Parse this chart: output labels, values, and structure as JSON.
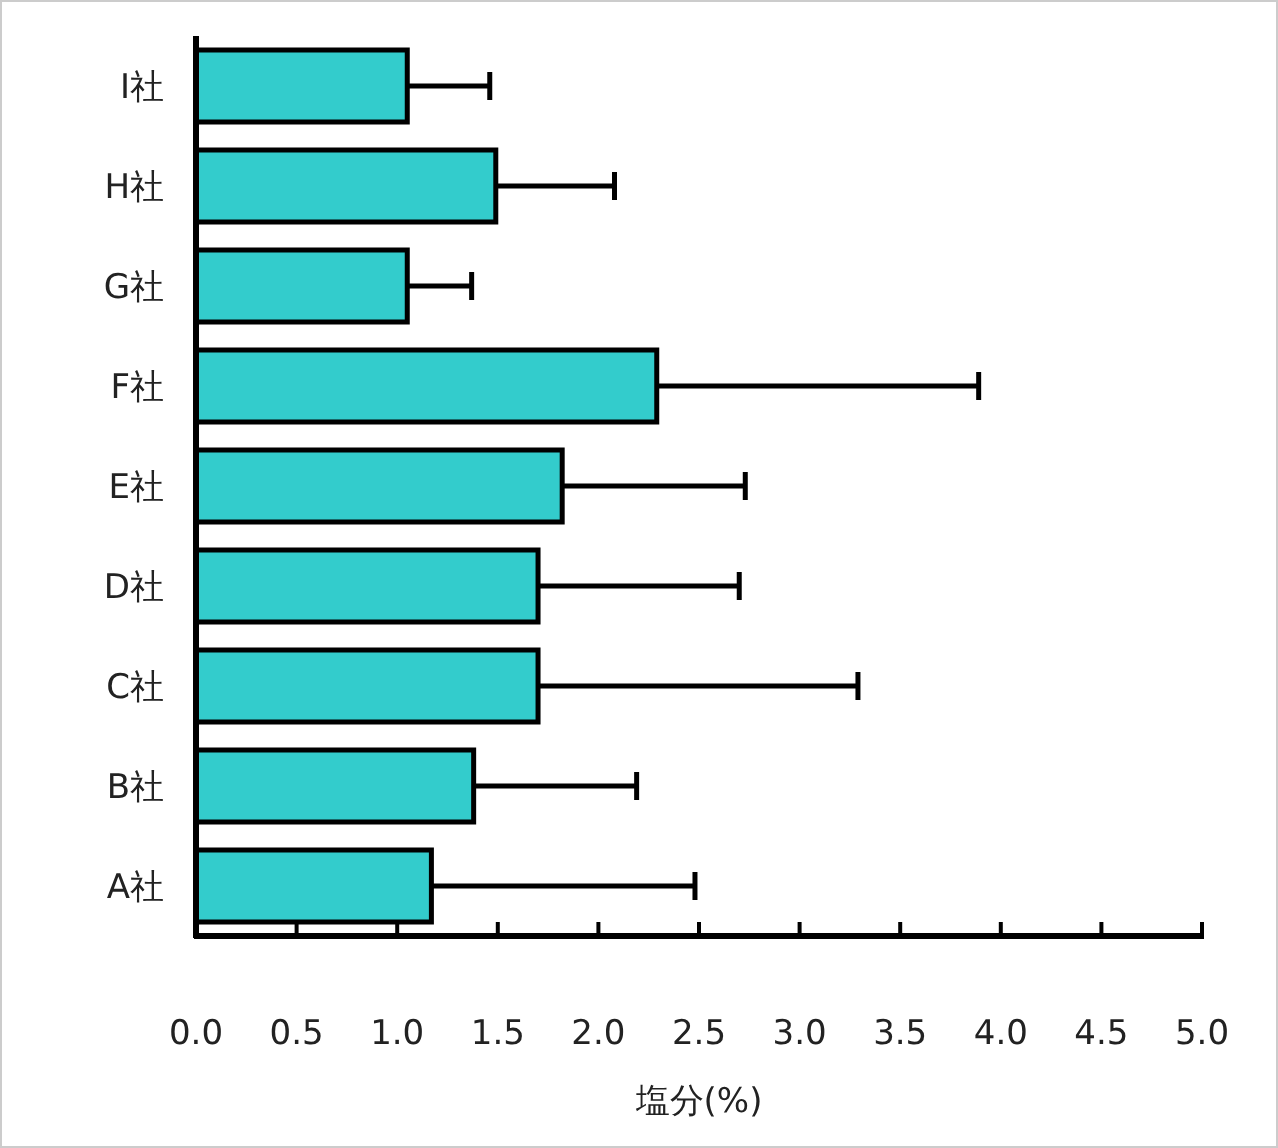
{
  "chart_data": {
    "type": "bar",
    "orientation": "horizontal",
    "categories": [
      "I社",
      "H社",
      "G社",
      "F社",
      "E社",
      "D社",
      "C社",
      "B社",
      "A社"
    ],
    "values": [
      1.05,
      1.49,
      1.05,
      2.29,
      1.82,
      1.7,
      1.7,
      1.38,
      1.17
    ],
    "errors": [
      [
        1.05,
        1.46
      ],
      [
        1.49,
        2.08
      ],
      [
        1.05,
        1.37
      ],
      [
        2.29,
        3.89
      ],
      [
        1.82,
        2.73
      ],
      [
        1.7,
        2.7
      ],
      [
        1.7,
        3.29
      ],
      [
        1.38,
        2.19
      ],
      [
        1.17,
        2.48
      ]
    ],
    "color": "#33cccc",
    "xlabel": "塩分(%)",
    "xlim": [
      0,
      5
    ],
    "xticks": [
      {
        "value": 0,
        "label": "0.0"
      },
      {
        "value": 0.5,
        "label": "0.5"
      },
      {
        "value": 1,
        "label": "1.0"
      },
      {
        "value": 1.5,
        "label": "1.5"
      },
      {
        "value": 2,
        "label": "2.0"
      },
      {
        "value": 2.5,
        "label": "2.5"
      },
      {
        "value": 3,
        "label": "3.0"
      },
      {
        "value": 3.5,
        "label": "3.5"
      },
      {
        "value": 4,
        "label": "4.0"
      },
      {
        "value": 4.5,
        "label": "4.5"
      },
      {
        "value": 5,
        "label": "5.0"
      }
    ],
    "grid": false
  }
}
